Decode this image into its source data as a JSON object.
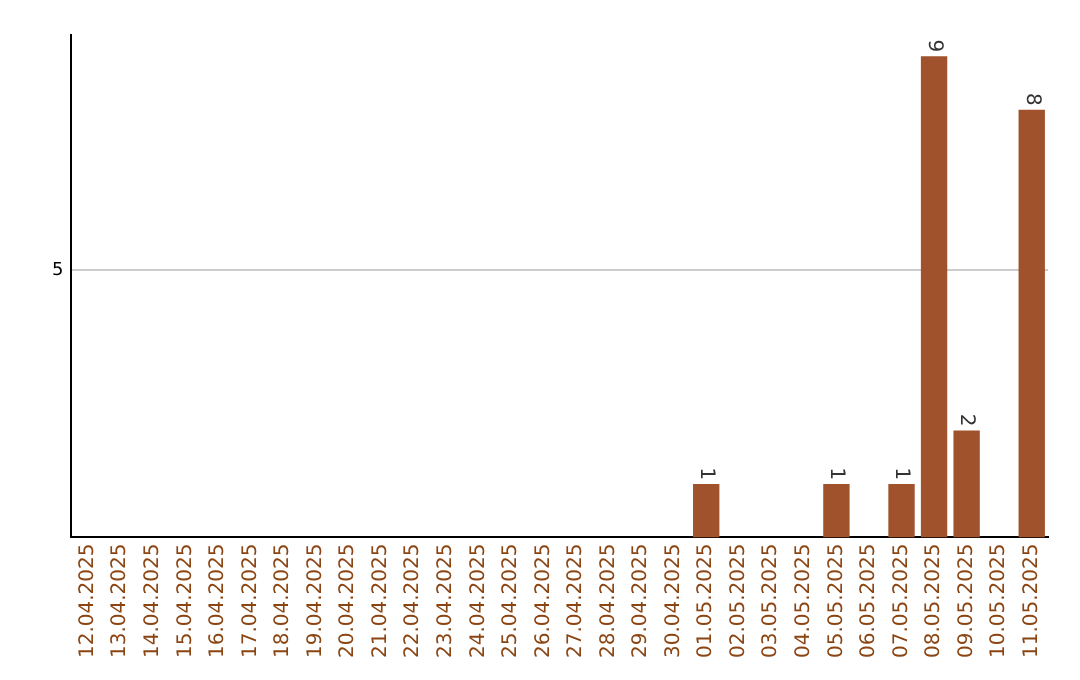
{
  "chart_data": {
    "type": "bar",
    "categories": [
      "12.04.2025",
      "13.04.2025",
      "14.04.2025",
      "15.04.2025",
      "16.04.2025",
      "17.04.2025",
      "18.04.2025",
      "19.04.2025",
      "20.04.2025",
      "21.04.2025",
      "22.04.2025",
      "23.04.2025",
      "24.04.2025",
      "25.04.2025",
      "26.04.2025",
      "27.04.2025",
      "28.04.2025",
      "29.04.2025",
      "30.04.2025",
      "01.05.2025",
      "02.05.2025",
      "03.05.2025",
      "04.05.2025",
      "05.05.2025",
      "06.05.2025",
      "07.05.2025",
      "08.05.2025",
      "09.05.2025",
      "10.05.2025",
      "11.05.2025"
    ],
    "values": [
      null,
      null,
      null,
      null,
      null,
      null,
      null,
      null,
      null,
      null,
      null,
      null,
      null,
      null,
      null,
      null,
      null,
      null,
      null,
      1,
      null,
      null,
      null,
      1,
      null,
      1,
      9,
      2,
      null,
      8
    ],
    "data_labels": true,
    "color": "#a0522d",
    "ylim": [
      0,
      9.4
    ],
    "yticks": [
      5
    ],
    "grid": "y",
    "legend": false
  }
}
